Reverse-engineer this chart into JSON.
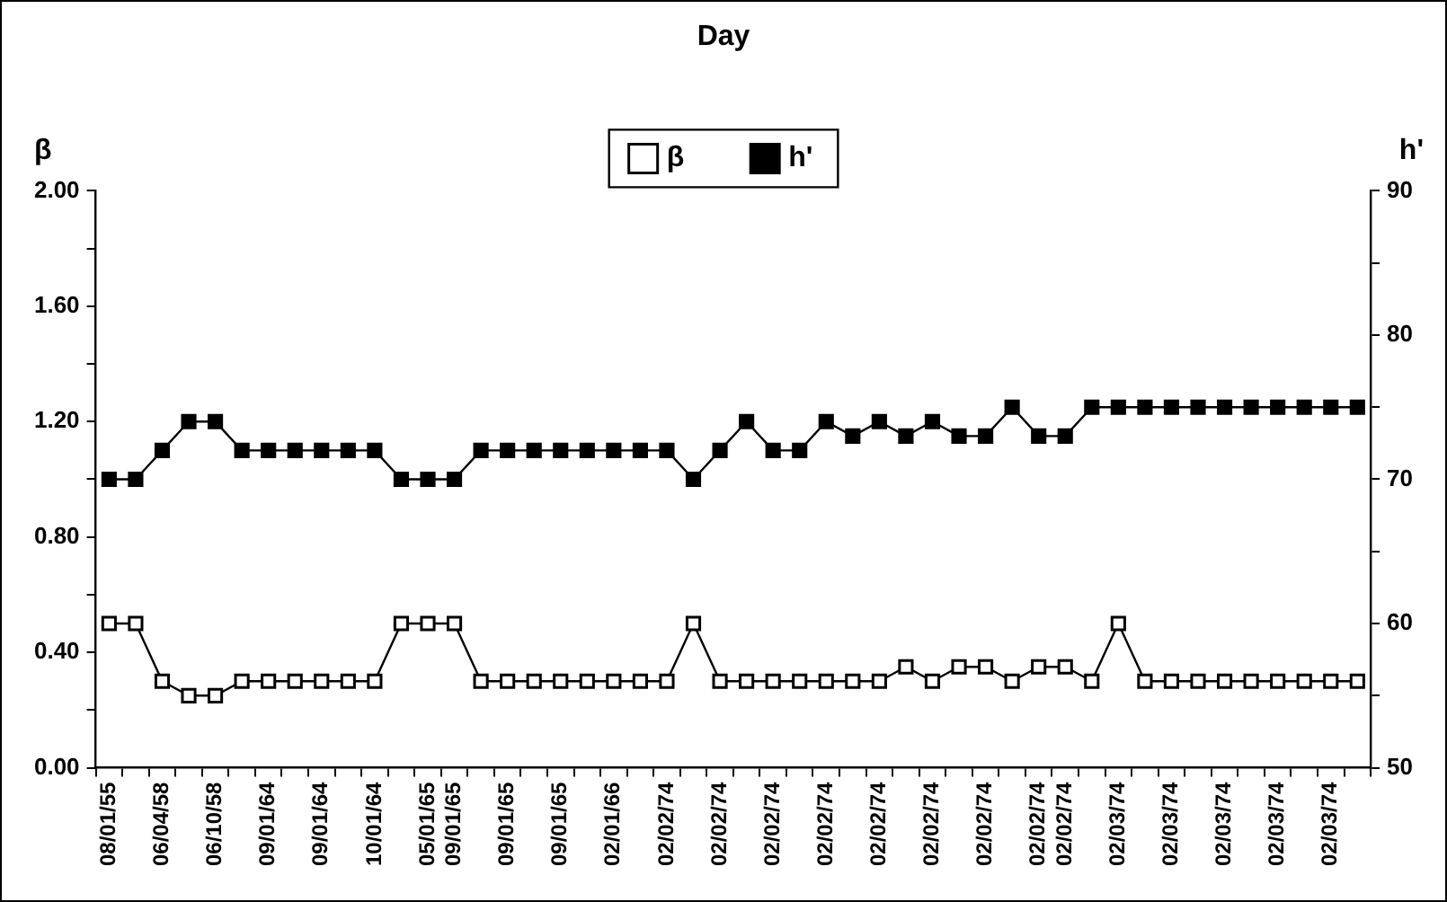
{
  "chart_data": {
    "type": "line",
    "title": "Day",
    "ylabel": "β",
    "y2label": "h'",
    "categories": [
      "08/01/55",
      null,
      "06/04/58",
      null,
      "06/10/58",
      null,
      "09/01/64",
      null,
      "09/01/64",
      null,
      "10/01/64",
      null,
      "05/01/65",
      "09/01/65",
      null,
      "09/01/65",
      null,
      "09/01/65",
      null,
      "02/01/66",
      null,
      "02/02/74",
      null,
      "02/02/74",
      null,
      "02/02/74",
      null,
      "02/02/74",
      null,
      "02/02/74",
      null,
      "02/02/74",
      null,
      "02/02/74",
      null,
      "02/02/74",
      "02/02/74",
      null,
      "02/03/74",
      null,
      "02/03/74",
      null,
      "02/03/74",
      null,
      "02/03/74",
      null,
      "02/03/74",
      null
    ],
    "series": [
      {
        "name": "β",
        "color": "#000000",
        "values": [
          0.5,
          0.5,
          0.3,
          0.25,
          0.25,
          0.3,
          0.3,
          0.3,
          0.3,
          0.3,
          0.3,
          0.5,
          0.5,
          0.5,
          0.3,
          0.3,
          0.3,
          0.3,
          0.3,
          0.3,
          0.3,
          0.3,
          0.5,
          0.3,
          0.3,
          0.3,
          0.3,
          0.3,
          0.3,
          0.3,
          0.35,
          0.3,
          0.35,
          0.35,
          0.3,
          0.35,
          0.35,
          0.3,
          0.5,
          0.3,
          0.3,
          0.3,
          0.3,
          0.3,
          0.3,
          0.3,
          0.3,
          0.3
        ]
      },
      {
        "name": "h'",
        "color": "#000000",
        "axis": "y2",
        "values": [
          70,
          70,
          72,
          74,
          74,
          72,
          72,
          72,
          72,
          72,
          72,
          70,
          70,
          70,
          72,
          72,
          72,
          72,
          72,
          72,
          72,
          72,
          70,
          72,
          74,
          72,
          72,
          74,
          73,
          74,
          73,
          74,
          73,
          73,
          75,
          73,
          73,
          75,
          75,
          75,
          75,
          75,
          75,
          75,
          75,
          75,
          75,
          75
        ]
      }
    ],
    "ylim": [
      0,
      2
    ],
    "yticks": [
      {
        "value": 0,
        "label": "0.00"
      },
      {
        "value": 0.2,
        "label": null
      },
      {
        "value": 0.4,
        "label": "0.40"
      },
      {
        "value": 0.6,
        "label": null
      },
      {
        "value": 0.8,
        "label": "0.80"
      },
      {
        "value": 1,
        "label": null
      },
      {
        "value": 1.2,
        "label": "1.20"
      },
      {
        "value": 1.4,
        "label": null
      },
      {
        "value": 1.6,
        "label": "1.60"
      },
      {
        "value": 1.8,
        "label": null
      },
      {
        "value": 2,
        "label": "2.00"
      }
    ],
    "y2lim": [
      50,
      90
    ],
    "y2ticks": [
      50,
      {
        "value": 55,
        "label": null
      },
      60,
      {
        "value": 65,
        "label": null
      },
      70,
      {
        "value": 75,
        "label": null
      },
      80,
      {
        "value": 85,
        "label": null
      },
      90
    ],
    "legend": "top",
    "grid": false,
    "marker": "square",
    "line_style": "solid"
  }
}
